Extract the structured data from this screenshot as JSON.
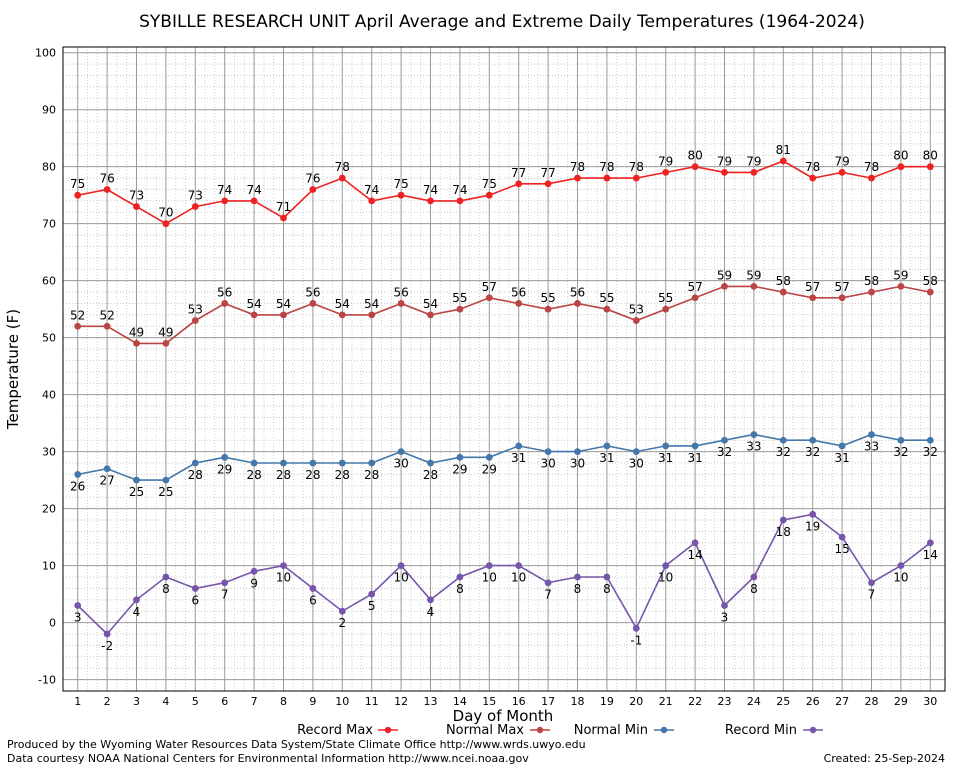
{
  "chart_data": {
    "type": "line",
    "title": "SYBILLE RESEARCH UNIT April Average and Extreme Daily Temperatures (1964-2024)",
    "xlabel": "Day of Month",
    "ylabel": "Temperature (F)",
    "ylim": [
      -12,
      101
    ],
    "yticks": [
      -10,
      0,
      10,
      20,
      30,
      40,
      50,
      60,
      70,
      80,
      90,
      100
    ],
    "x": [
      1,
      2,
      3,
      4,
      5,
      6,
      7,
      8,
      9,
      10,
      11,
      12,
      13,
      14,
      15,
      16,
      17,
      18,
      19,
      20,
      21,
      22,
      23,
      24,
      25,
      26,
      27,
      28,
      29,
      30
    ],
    "grid": true,
    "legend_position": "bottom",
    "series": [
      {
        "name": "Record Max",
        "color": "#ee2222",
        "label_pos": "above",
        "values": [
          75,
          76,
          73,
          70,
          73,
          74,
          74,
          71,
          76,
          78,
          74,
          75,
          74,
          74,
          75,
          77,
          77,
          78,
          78,
          78,
          79,
          80,
          79,
          79,
          81,
          78,
          79,
          78,
          80,
          80
        ]
      },
      {
        "name": "Normal Max",
        "color": "#bb4444",
        "label_pos": "above",
        "values": [
          52,
          52,
          49,
          49,
          53,
          56,
          54,
          54,
          56,
          54,
          54,
          56,
          54,
          55,
          57,
          56,
          55,
          56,
          55,
          53,
          55,
          57,
          59,
          59,
          58,
          57,
          57,
          58,
          59,
          58
        ]
      },
      {
        "name": "Normal Min",
        "color": "#4477aa",
        "label_pos": "below",
        "values": [
          26,
          27,
          25,
          25,
          28,
          29,
          28,
          28,
          28,
          28,
          28,
          30,
          28,
          29,
          29,
          31,
          30,
          30,
          31,
          30,
          31,
          31,
          32,
          33,
          32,
          32,
          31,
          33,
          32,
          32
        ]
      },
      {
        "name": "Record Min",
        "color": "#7755aa",
        "label_pos": "below",
        "values": [
          3,
          -2,
          4,
          8,
          6,
          7,
          9,
          10,
          6,
          2,
          5,
          10,
          4,
          8,
          10,
          10,
          7,
          8,
          8,
          -1,
          10,
          14,
          3,
          8,
          18,
          19,
          15,
          7,
          10,
          14
        ]
      }
    ]
  },
  "footer": {
    "produced_by": "Produced by the Wyoming Water Resources Data System/State Climate Office http://www.wrds.uwyo.edu",
    "courtesy": "Data courtesy NOAA National Centers for Environmental Information http://www.ncei.noaa.gov",
    "created": "Created: 25-Sep-2024"
  }
}
